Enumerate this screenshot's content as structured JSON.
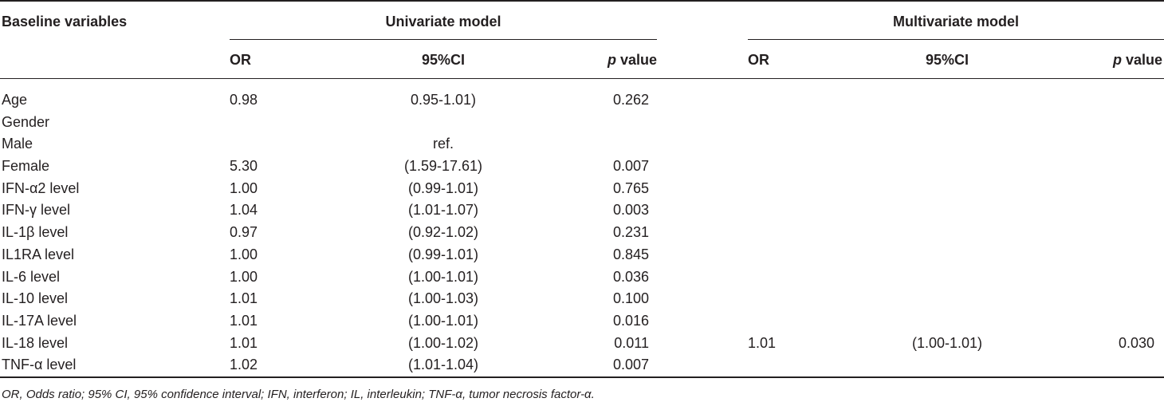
{
  "headers": {
    "baseline": "Baseline variables",
    "univariate": "Univariate model",
    "multivariate": "Multivariate model",
    "or": "OR",
    "ci": "95%CI",
    "p_italic": "p",
    "p_rest": " value"
  },
  "rows": [
    {
      "var": "Age",
      "or": "0.98",
      "ci": "0.95-1.01)",
      "p": "0.262",
      "m_or": "",
      "m_ci": "",
      "m_p": ""
    },
    {
      "var": "Gender",
      "or": "",
      "ci": "",
      "p": "",
      "m_or": "",
      "m_ci": "",
      "m_p": ""
    },
    {
      "var": "Male",
      "or": "",
      "ci": "ref.",
      "p": "",
      "m_or": "",
      "m_ci": "",
      "m_p": ""
    },
    {
      "var": "Female",
      "or": "5.30",
      "ci": "(1.59-17.61)",
      "p": "0.007",
      "m_or": "",
      "m_ci": "",
      "m_p": ""
    },
    {
      "var": "IFN-α2 level",
      "or": "1.00",
      "ci": "(0.99-1.01)",
      "p": "0.765",
      "m_or": "",
      "m_ci": "",
      "m_p": ""
    },
    {
      "var": "IFN-γ level",
      "or": "1.04",
      "ci": "(1.01-1.07)",
      "p": "0.003",
      "m_or": "",
      "m_ci": "",
      "m_p": ""
    },
    {
      "var": "IL-1β level",
      "or": "0.97",
      "ci": "(0.92-1.02)",
      "p": "0.231",
      "m_or": "",
      "m_ci": "",
      "m_p": ""
    },
    {
      "var": "IL1RA level",
      "or": "1.00",
      "ci": "(0.99-1.01)",
      "p": "0.845",
      "m_or": "",
      "m_ci": "",
      "m_p": ""
    },
    {
      "var": "IL-6 level",
      "or": "1.00",
      "ci": "(1.00-1.01)",
      "p": "0.036",
      "m_or": "",
      "m_ci": "",
      "m_p": ""
    },
    {
      "var": "IL-10 level",
      "or": "1.01",
      "ci": "(1.00-1.03)",
      "p": "0.100",
      "m_or": "",
      "m_ci": "",
      "m_p": ""
    },
    {
      "var": "IL-17A level",
      "or": "1.01",
      "ci": "(1.00-1.01)",
      "p": "0.016",
      "m_or": "",
      "m_ci": "",
      "m_p": ""
    },
    {
      "var": "IL-18 level",
      "or": "1.01",
      "ci": "(1.00-1.02)",
      "p": "0.011",
      "m_or": "1.01",
      "m_ci": "(1.00-1.01)",
      "m_p": "0.030"
    },
    {
      "var": "TNF-α level",
      "or": "1.02",
      "ci": "(1.01-1.04)",
      "p": "0.007",
      "m_or": "",
      "m_ci": "",
      "m_p": ""
    }
  ],
  "footnote": "OR, Odds ratio; 95% CI, 95% confidence interval; IFN, interferon; IL, interleukin; TNF-α, tumor necrosis factor-α."
}
